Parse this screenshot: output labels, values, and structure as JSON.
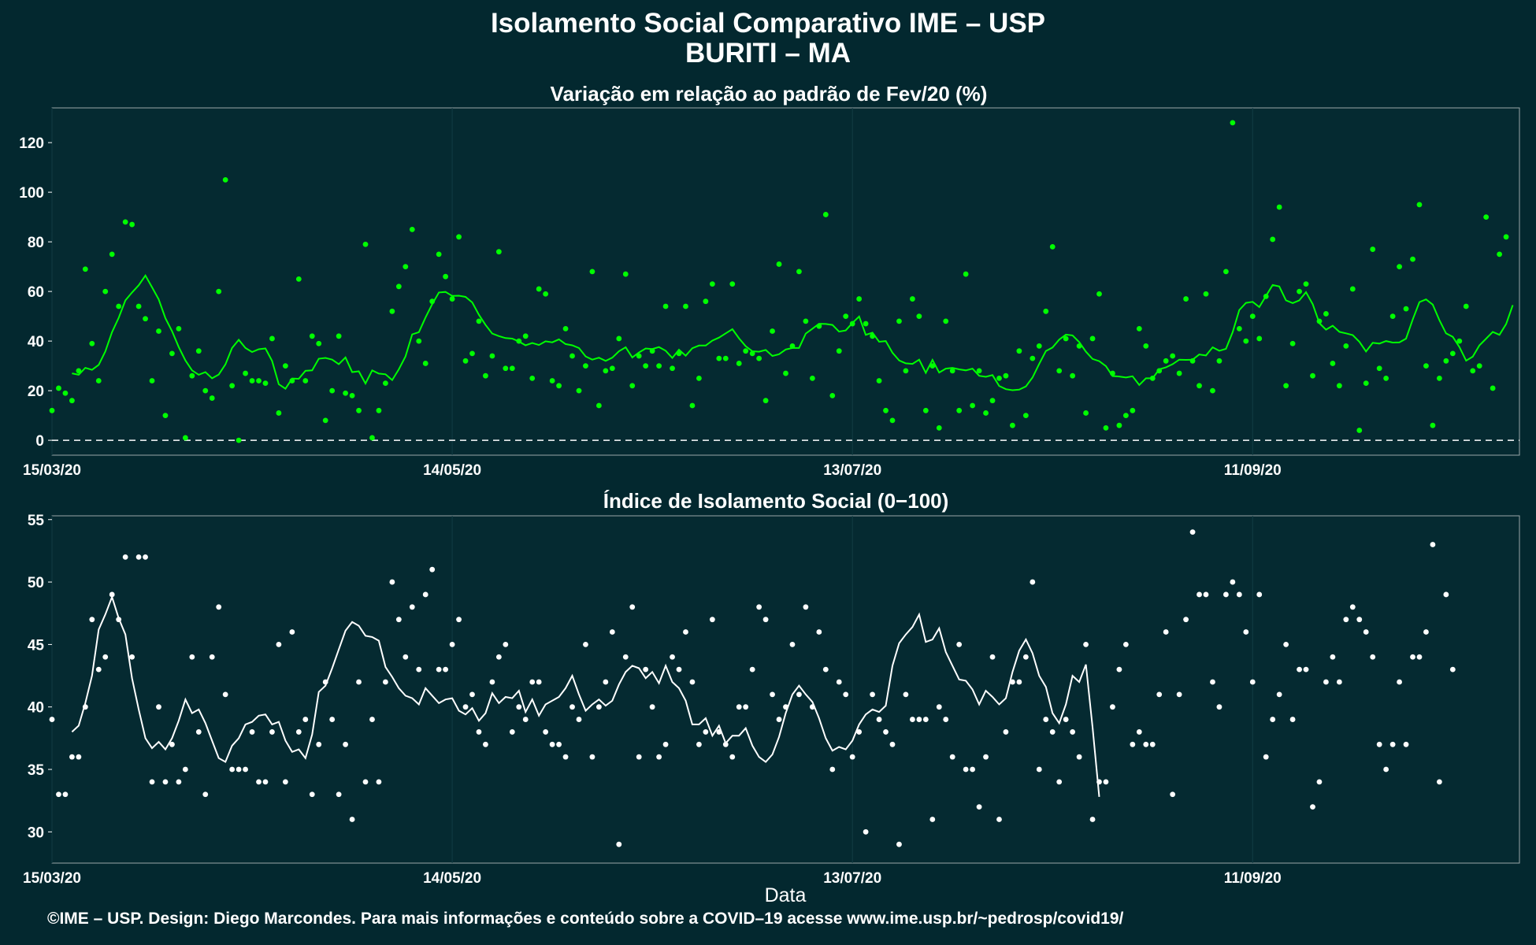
{
  "header": {
    "title_line1": "Isolamento Social Comparativo IME – USP",
    "title_line2": "BURITI – MA"
  },
  "footer": "©IME – USP. Design: Diego Marcondes. Para mais informações e conteúdo sobre a COVID–19 acesse www.ime.usp.br/~pedrosp/covid19/",
  "colors": {
    "background": "#03282f",
    "panel": "#052a31",
    "variation_series": "#00ff00",
    "index_series": "#ffffff"
  },
  "chart_data": [
    {
      "type": "scatter",
      "title": "Variação em relação ao padrão de Fev/20 (%)",
      "xlabel": "",
      "ylabel": "",
      "x_ticks": [
        "15/03/20",
        "14/05/20",
        "13/07/20",
        "11/09/20"
      ],
      "y_ticks": [
        0,
        20,
        40,
        60,
        80,
        100,
        120
      ],
      "ylim": [
        -6,
        134
      ],
      "xlim_days": [
        0,
        220
      ],
      "reference_line": 0,
      "grid": true,
      "series": [
        {
          "kind": "points",
          "values": [
            12,
            21,
            19,
            16,
            28,
            69,
            39,
            24,
            60,
            75,
            54,
            88,
            87,
            54,
            49,
            24,
            44,
            10,
            35,
            45,
            1,
            26,
            36,
            20,
            17,
            60,
            105,
            22,
            0,
            27,
            24,
            24,
            23,
            41,
            11,
            30,
            24,
            65,
            24,
            42,
            39,
            8,
            20,
            42,
            19,
            18,
            12,
            79,
            1,
            12,
            23,
            52,
            62,
            70,
            85,
            40,
            31,
            56,
            75,
            66,
            57,
            82,
            32,
            35,
            48,
            26,
            34,
            76,
            29,
            29,
            40,
            42,
            25,
            61,
            59,
            24,
            22,
            45,
            34,
            20,
            30,
            68,
            14,
            28,
            29,
            41,
            67,
            22,
            34,
            30,
            36,
            30,
            54,
            29,
            35,
            54,
            14,
            25,
            56,
            63,
            33,
            33,
            63,
            31,
            36,
            35,
            33,
            16,
            44,
            71,
            27,
            38,
            68,
            48,
            25,
            46,
            91,
            18,
            36,
            50,
            47,
            57,
            47,
            42,
            24,
            12,
            8,
            48,
            28,
            57,
            50,
            12,
            30,
            5,
            48,
            28,
            12,
            67,
            14,
            28,
            11,
            16,
            25,
            26,
            6,
            36,
            10,
            33,
            38,
            52,
            78,
            28,
            41,
            26,
            38,
            11,
            41,
            59,
            5,
            27,
            6,
            10,
            12,
            45,
            38,
            25,
            28,
            32,
            34,
            27,
            57,
            32,
            22,
            59,
            20,
            32,
            68,
            128,
            45,
            40,
            50,
            41,
            58,
            81,
            94,
            22,
            39,
            60,
            63,
            26,
            48,
            51,
            31,
            22,
            38,
            61,
            4,
            23,
            77,
            29,
            25,
            50,
            70,
            53,
            73,
            95,
            30,
            6,
            25,
            32,
            35,
            40,
            54,
            28,
            30,
            90,
            21,
            75,
            82
          ]
        },
        {
          "kind": "moving_average",
          "values": [
            27,
            26.4,
            29.2,
            28.4,
            30.4,
            35.8,
            43.6,
            49.4,
            56.4,
            59.6,
            62.5,
            66.4,
            61.7,
            56.8,
            49.2,
            44,
            37.6,
            32.2,
            28.2,
            26.4,
            27.5,
            25,
            26.5,
            30.6,
            37.2,
            40.5,
            37.2,
            35.6,
            36.7,
            37,
            32,
            22.6,
            20.8,
            24.9,
            24.8,
            28,
            28.2,
            32.9,
            33.2,
            32.5,
            30.7,
            33.4,
            27.5,
            27.8,
            22.9,
            28.2,
            26.9,
            26.6,
            24.3,
            28.6,
            33.8,
            42.7,
            43.6,
            49.5,
            54.9,
            59.6,
            59.8,
            58.2,
            58.3,
            57.8,
            55.6,
            50.6,
            46.5,
            43,
            42,
            41.2,
            41,
            39.8,
            38.3,
            39.2,
            38.4,
            39.9,
            39.5,
            40.7,
            38.8,
            38.3,
            37.2,
            33.8,
            32.5,
            33.3,
            32,
            33.3,
            35.9,
            37.5,
            33.4,
            35.4,
            37,
            36.8,
            37.6,
            36.1,
            33.2,
            36.5,
            34.1,
            37.1,
            38.2,
            38.2,
            40.2,
            41.4,
            43.1,
            44.8,
            41.1,
            37.9,
            35.9,
            35.7,
            36.4,
            34,
            34.7,
            36.6,
            37.2,
            37.2,
            43,
            45,
            47,
            46.9,
            46.5,
            43.8,
            44.3,
            47.3,
            49.9,
            42.5,
            43.4,
            39.7,
            40,
            35.3,
            32.2,
            31,
            30.8,
            32.5,
            27.2,
            32.4,
            27.3,
            28.9,
            29.2,
            28.6,
            28.2,
            28.9,
            26,
            25.6,
            26.3,
            21.9,
            20.6,
            20.2,
            20.4,
            21.7,
            25.3,
            30.8,
            36,
            37.4,
            40.6,
            42.6,
            42.3,
            39.6,
            35.7,
            32.8,
            31.9,
            29.9,
            25.9,
            25.7,
            25.3,
            25.8,
            22.3,
            25,
            25,
            28.6,
            29.4,
            30.7,
            32.5,
            32.4,
            32.5,
            34.6,
            34.2,
            37.5,
            36.1,
            36.9,
            43.6,
            52.5,
            55.4,
            55.8,
            53.7,
            58.2,
            62.6,
            62,
            56.4,
            55.3,
            56.4,
            59.7,
            54.9,
            47.2,
            44.6,
            46.2,
            43.7,
            43.1,
            42.4,
            39.7,
            35.8,
            39.3,
            39,
            40,
            39.4,
            39.5,
            41,
            48.7,
            55.7,
            56.8,
            54.7,
            48.4,
            43.1,
            41.7,
            37.6,
            32.1,
            33.7,
            38.3,
            41,
            43.7,
            42.5,
            46.9,
            54.5
          ]
        }
      ]
    },
    {
      "type": "scatter",
      "title": "Índice de Isolamento Social (0−100)",
      "xlabel": "Data",
      "ylabel": "",
      "x_ticks": [
        "15/03/20",
        "14/05/20",
        "13/07/20",
        "11/09/20"
      ],
      "y_ticks": [
        30,
        35,
        40,
        45,
        50,
        55
      ],
      "ylim": [
        27.5,
        55.3
      ],
      "xlim_days": [
        0,
        220
      ],
      "grid": true,
      "series": [
        {
          "kind": "points",
          "values": [
            39,
            33,
            33,
            36,
            36,
            40,
            47,
            43,
            44,
            49,
            47,
            52,
            44,
            52,
            52,
            34,
            40,
            34,
            37,
            34,
            35,
            44,
            38,
            33,
            44,
            48,
            41,
            35,
            35,
            35,
            38,
            34,
            34,
            38,
            45,
            34,
            46,
            38,
            39,
            33,
            37,
            42,
            39,
            33,
            37,
            31,
            42,
            34,
            39,
            34,
            42,
            50,
            47,
            44,
            48,
            43,
            49,
            51,
            43,
            43,
            45,
            47,
            40,
            41,
            38,
            37,
            42,
            44,
            45,
            38,
            40,
            39,
            42,
            42,
            38,
            37,
            37,
            36,
            40,
            39,
            45,
            36,
            40,
            42,
            46,
            29,
            44,
            48,
            36,
            43,
            40,
            36,
            37,
            44,
            43,
            46,
            42,
            37,
            38,
            47,
            38,
            37,
            36,
            40,
            40,
            43,
            48,
            47,
            41,
            39,
            40,
            45,
            41,
            48,
            40,
            46,
            43,
            35,
            42,
            41,
            36,
            38,
            30,
            41,
            39,
            38,
            37,
            29,
            41,
            39,
            39,
            39,
            31,
            40,
            39,
            36,
            45,
            35,
            35,
            32,
            36,
            44,
            31,
            38,
            42,
            42,
            44,
            50,
            35,
            39,
            38,
            34,
            39,
            38,
            36,
            45,
            31,
            34,
            34,
            40,
            43,
            45,
            37,
            38,
            37,
            37,
            41,
            46,
            33,
            41,
            47,
            54,
            49,
            49,
            42,
            40,
            49,
            50,
            49,
            46,
            42,
            49,
            36,
            39,
            41,
            45,
            39,
            43,
            43,
            32,
            34,
            42,
            44,
            42,
            47,
            48,
            47,
            46,
            44,
            37,
            35,
            37,
            42,
            37,
            44,
            44,
            46,
            53,
            34,
            49,
            43
          ]
        },
        {
          "kind": "moving_average",
          "values": [
            38,
            38.5,
            40.3,
            42.5,
            46.2,
            47.4,
            48.8,
            47.1,
            45.8,
            42.3,
            39.8,
            37.5,
            36.7,
            37.2,
            36.6,
            37.5,
            38.9,
            40.6,
            39.5,
            39.8,
            38.7,
            37.3,
            35.9,
            35.6,
            36.9,
            37.5,
            38.6,
            38.8,
            39.3,
            39.4,
            38.6,
            38.8,
            37.3,
            36.4,
            36.6,
            35.9,
            37.8,
            41.2,
            41.7,
            43.1,
            44.6,
            46.1,
            46.8,
            46.5,
            45.7,
            45.6,
            45.3,
            43.2,
            42.4,
            41.5,
            40.9,
            40.7,
            40.2,
            41.5,
            40.9,
            40.3,
            40.6,
            40.7,
            39.7,
            39.4,
            39.9,
            38.9,
            39.5,
            41.1,
            40.3,
            40.8,
            40.7,
            41.3,
            39.6,
            40.6,
            39.3,
            40.2,
            40.5,
            40.8,
            41.5,
            42.5,
            41,
            39.7,
            40.2,
            40.6,
            40.1,
            40.5,
            41.8,
            42.8,
            43.3,
            43.1,
            42.3,
            42.8,
            41.9,
            43.3,
            42,
            41.5,
            40.5,
            38.6,
            38.6,
            39.1,
            37.7,
            38.5,
            37.1,
            37.7,
            37.7,
            38.3,
            36.9,
            36,
            35.6,
            36.2,
            37.6,
            39.5,
            41,
            41.7,
            41,
            40.4,
            39.1,
            37.5,
            36.5,
            36.8,
            36.6,
            37.3,
            38.6,
            39.4,
            39.8,
            39.6,
            40.1,
            43.3,
            45.1,
            45.8,
            46.4,
            47.4,
            45.2,
            45.4,
            46.3,
            44.4,
            43.3,
            42.2,
            42.1,
            41.4,
            40.2,
            41.3,
            40.8,
            40.2,
            40.7,
            42.8,
            44.5,
            45.4,
            44.3,
            42.5,
            41.6,
            39.5,
            38.7,
            40.2,
            42.5,
            42,
            43.4,
            38.4,
            32.8
          ]
        }
      ]
    }
  ]
}
